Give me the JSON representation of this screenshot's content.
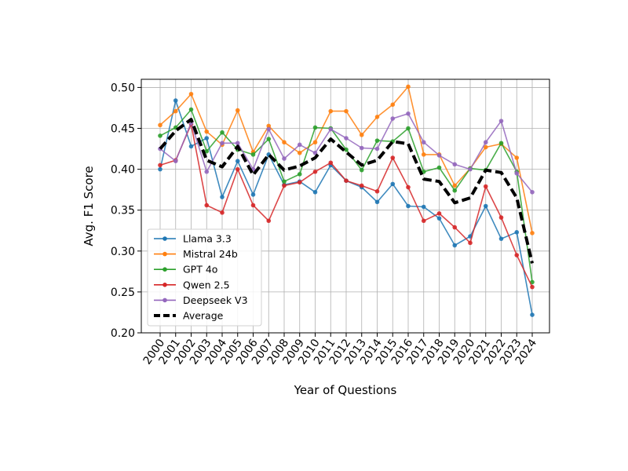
{
  "chart_data": {
    "type": "line",
    "xlabel": "Year of Questions",
    "ylabel": "Avg. F1 Score",
    "ylim": [
      0.2,
      0.51
    ],
    "y_ticks": [
      "0.20",
      "0.25",
      "0.30",
      "0.35",
      "0.40",
      "0.45",
      "0.50"
    ],
    "grid": true,
    "legend_position": "lower-left",
    "x": [
      "2000",
      "2001",
      "2002",
      "2003",
      "2004",
      "2005",
      "2006",
      "2007",
      "2008",
      "2009",
      "2010",
      "2011",
      "2012",
      "2013",
      "2014",
      "2015",
      "2016",
      "2017",
      "2018",
      "2019",
      "2020",
      "2021",
      "2022",
      "2023",
      "2024"
    ],
    "series": [
      {
        "name": "Llama 3.3",
        "color": "#1f77b4",
        "style": "solid",
        "values": [
          0.4,
          0.484,
          0.428,
          0.438,
          0.366,
          0.41,
          0.369,
          0.418,
          0.381,
          0.385,
          0.372,
          0.405,
          0.386,
          0.378,
          0.36,
          0.382,
          0.355,
          0.354,
          0.34,
          0.307,
          0.318,
          0.355,
          0.315,
          0.323,
          0.222
        ]
      },
      {
        "name": "Mistral 24b",
        "color": "#ff7f0e",
        "style": "solid",
        "values": [
          0.454,
          0.471,
          0.492,
          0.446,
          0.43,
          0.472,
          0.421,
          0.453,
          0.433,
          0.42,
          0.433,
          0.471,
          0.471,
          0.442,
          0.464,
          0.479,
          0.501,
          0.418,
          0.418,
          0.38,
          0.401,
          0.427,
          0.431,
          0.414,
          0.322
        ]
      },
      {
        "name": "GPT 4o",
        "color": "#2ca02c",
        "style": "solid",
        "values": [
          0.441,
          0.451,
          0.473,
          0.422,
          0.445,
          0.424,
          0.418,
          0.437,
          0.385,
          0.394,
          0.451,
          0.45,
          0.424,
          0.399,
          0.435,
          0.434,
          0.45,
          0.397,
          0.402,
          0.374,
          0.401,
          0.399,
          0.432,
          0.397,
          0.262
        ]
      },
      {
        "name": "Qwen 2.5",
        "color": "#d62728",
        "style": "solid",
        "values": [
          0.405,
          0.411,
          0.455,
          0.356,
          0.347,
          0.4,
          0.356,
          0.337,
          0.38,
          0.384,
          0.397,
          0.408,
          0.386,
          0.38,
          0.373,
          0.414,
          0.378,
          0.337,
          0.346,
          0.329,
          0.31,
          0.379,
          0.341,
          0.295,
          0.256
        ]
      },
      {
        "name": "Deepseek V3",
        "color": "#9467bd",
        "style": "solid",
        "values": [
          0.425,
          0.41,
          0.457,
          0.397,
          0.432,
          0.432,
          0.4,
          0.449,
          0.413,
          0.43,
          0.42,
          0.449,
          0.438,
          0.426,
          0.425,
          0.462,
          0.468,
          0.433,
          0.417,
          0.406,
          0.4,
          0.433,
          0.459,
          0.395,
          0.372
        ]
      },
      {
        "name": "Average",
        "color": "#000000",
        "style": "dashed",
        "values": [
          0.425,
          0.447,
          0.461,
          0.411,
          0.403,
          0.428,
          0.393,
          0.418,
          0.399,
          0.404,
          0.414,
          0.437,
          0.421,
          0.405,
          0.411,
          0.434,
          0.431,
          0.388,
          0.385,
          0.359,
          0.365,
          0.399,
          0.396,
          0.365,
          0.285
        ]
      }
    ]
  }
}
